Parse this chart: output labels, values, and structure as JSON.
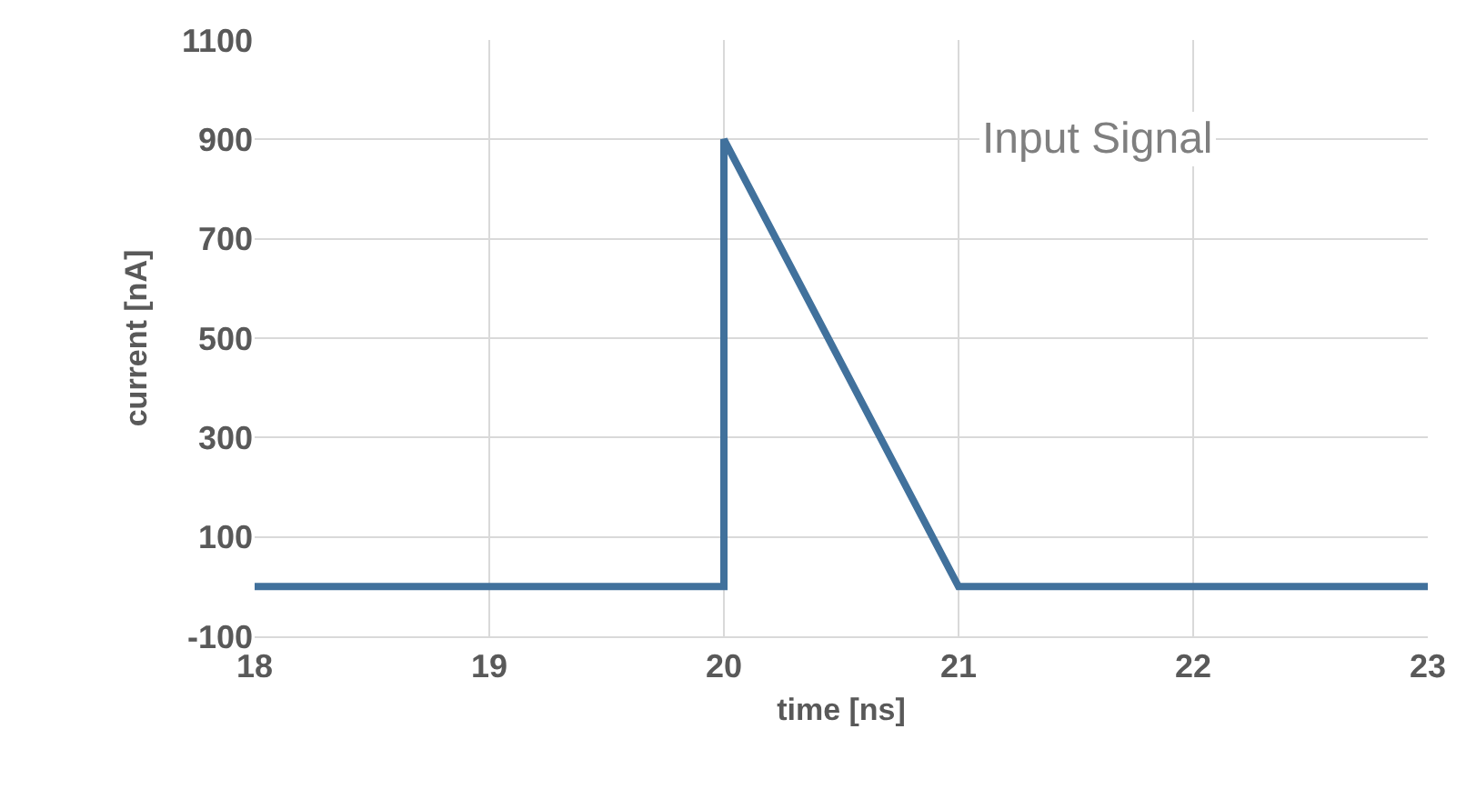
{
  "chart_data": {
    "type": "line",
    "xlabel": "time [ns]",
    "ylabel": "current [nA]",
    "annotations": [
      "Input Signal"
    ],
    "x": [
      18,
      20,
      20,
      21,
      23
    ],
    "series": [
      {
        "color": "#41719c",
        "values": [
          0,
          0,
          900,
          0,
          0
        ]
      }
    ],
    "xlim": [
      18,
      23
    ],
    "xticks": [
      18,
      19,
      20,
      21,
      22,
      23
    ],
    "ylim": [
      -100,
      1100
    ],
    "yticks": [
      -100,
      100,
      300,
      500,
      700,
      900,
      1100
    ],
    "grid": true,
    "marker": "none",
    "line_style": "solid"
  }
}
